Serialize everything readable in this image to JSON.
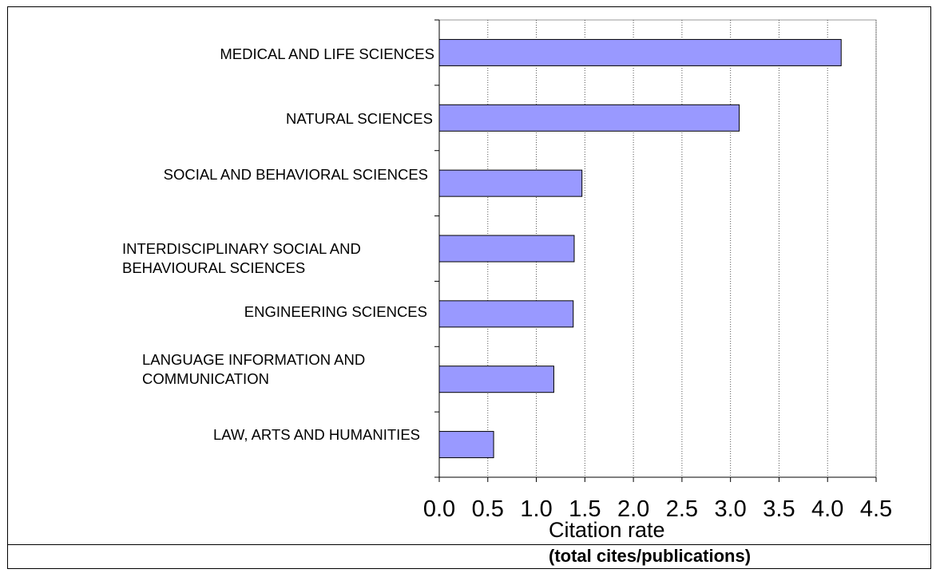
{
  "chart_data": {
    "type": "bar",
    "orientation": "horizontal",
    "categories": [
      "MEDICAL AND LIFE SCIENCES",
      "NATURAL SCIENCES",
      "SOCIAL AND BEHAVIORAL SCIENCES",
      "INTERDISCIPLINARY SOCIAL AND\nBEHAVIOURAL SCIENCES",
      "ENGINEERING SCIENCES",
      "LANGUAGE INFORMATION AND\nCOMMUNICATION",
      "LAW, ARTS AND HUMANITIES"
    ],
    "values": [
      4.14,
      3.09,
      1.47,
      1.39,
      1.38,
      1.18,
      0.56
    ],
    "xlabel": "Citation rate",
    "xlabel_sub": "(total cites/publications)",
    "xlim": [
      0,
      4.5
    ],
    "xticks": [
      "0.0",
      "0.5",
      "1.0",
      "1.5",
      "2.0",
      "2.5",
      "3.0",
      "3.5",
      "4.0",
      "4.5"
    ],
    "grid": "vertical dotted",
    "bar_color": "#9999ff",
    "legend": "none"
  }
}
